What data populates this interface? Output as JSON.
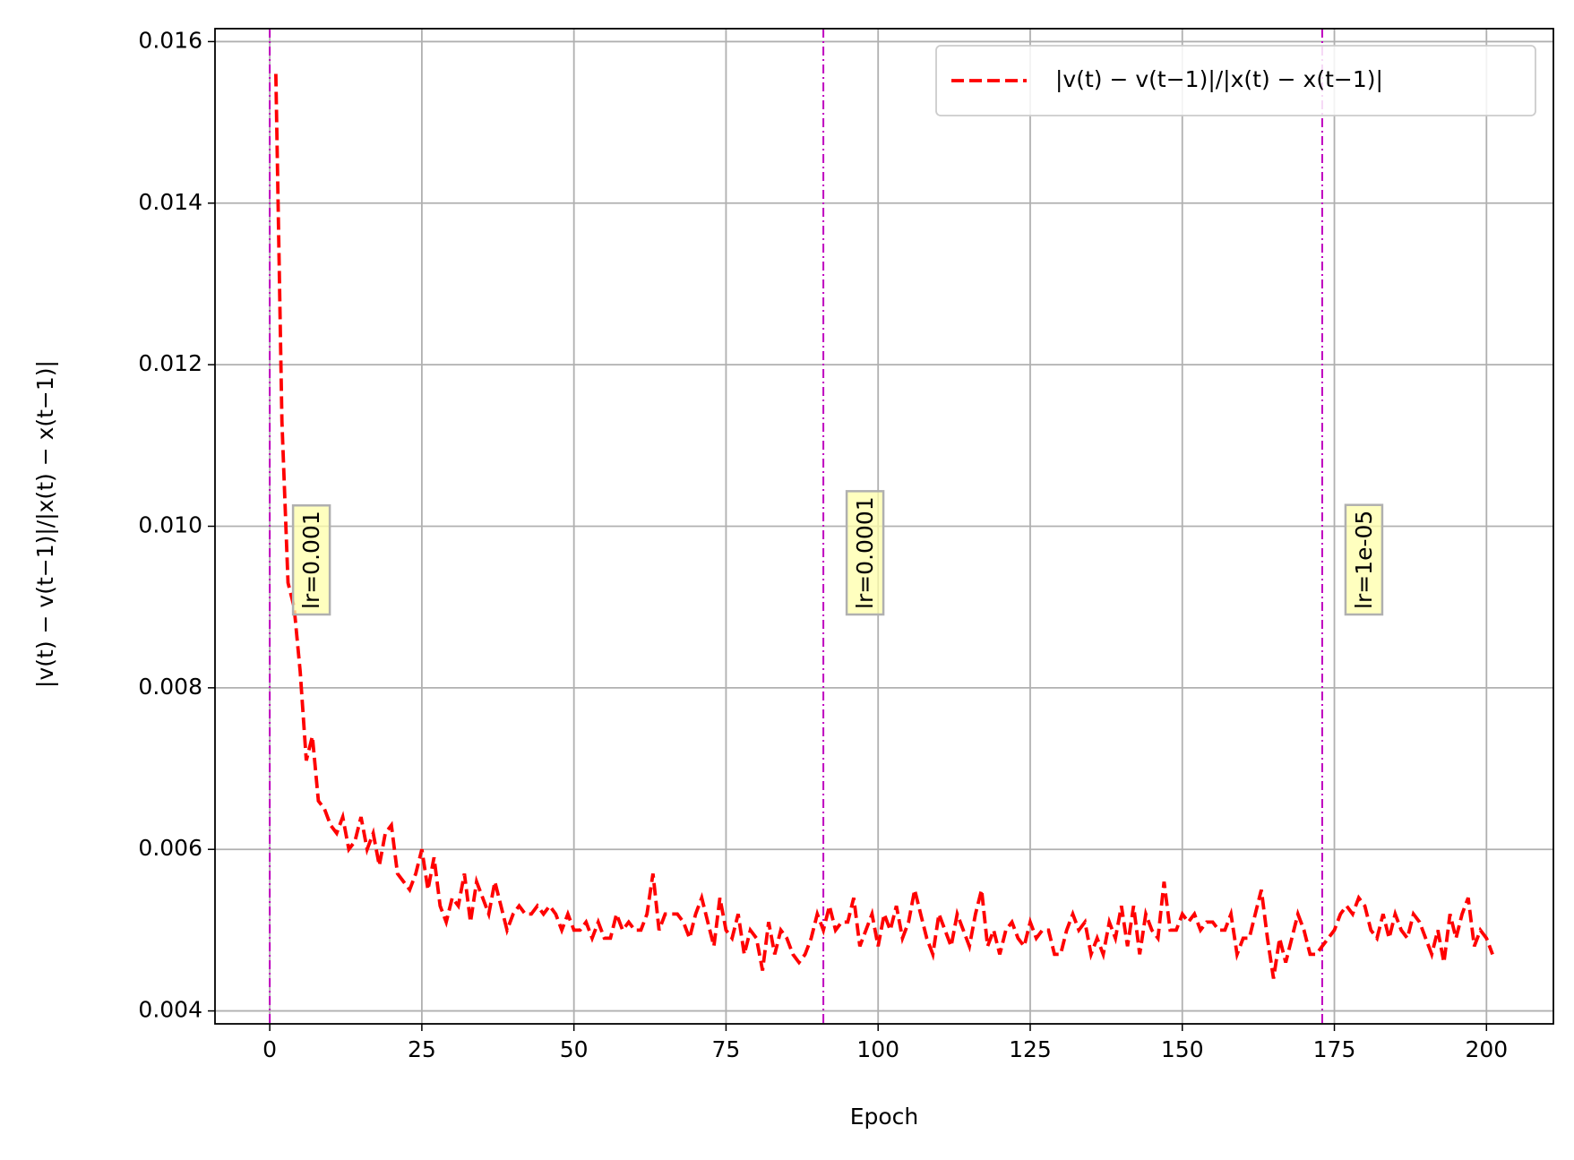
{
  "chart_data": {
    "type": "line",
    "x_label": "Epoch",
    "y_label": "|v(t) − v(t−1)|/|x(t) − x(t−1)|",
    "xlim": [
      -9,
      211
    ],
    "ylim": [
      0.00384,
      0.01616
    ],
    "xticks": [
      0,
      25,
      50,
      75,
      100,
      125,
      150,
      175,
      200
    ],
    "yticks": [
      0.004,
      0.006,
      0.008,
      {
        "value": 0.01,
        "label": "0.010"
      },
      0.012,
      0.014,
      0.016
    ],
    "grid": true,
    "legend": "upper right",
    "vlines": [
      {
        "x": 0,
        "label": "lr=0.001"
      },
      {
        "x": 91,
        "label": "lr=0.0001"
      },
      {
        "x": 173,
        "label": "lr=1e-05"
      }
    ],
    "vline_color": "#bf00bf",
    "series": [
      {
        "name": "|v(t) − v(t−1)|/|x(t) − x(t−1)|",
        "color": "#ff0000",
        "x": [
          1,
          2,
          3,
          4,
          5,
          6,
          7,
          8,
          9,
          10,
          11,
          12,
          13,
          14,
          15,
          16,
          17,
          18,
          19,
          20,
          21,
          22,
          23,
          24,
          25,
          26,
          27,
          28,
          29,
          30,
          31,
          32,
          33,
          34,
          35,
          36,
          37,
          38,
          39,
          40,
          41,
          42,
          43,
          44,
          45,
          46,
          47,
          48,
          49,
          50,
          51,
          52,
          53,
          54,
          55,
          56,
          57,
          58,
          59,
          60,
          61,
          62,
          63,
          64,
          65,
          66,
          67,
          68,
          69,
          70,
          71,
          72,
          73,
          74,
          75,
          76,
          77,
          78,
          79,
          80,
          81,
          82,
          83,
          84,
          85,
          86,
          87,
          88,
          89,
          90,
          91,
          92,
          93,
          94,
          95,
          96,
          97,
          98,
          99,
          100,
          101,
          102,
          103,
          104,
          105,
          106,
          107,
          108,
          109,
          110,
          111,
          112,
          113,
          114,
          115,
          116,
          117,
          118,
          119,
          120,
          121,
          122,
          123,
          124,
          125,
          126,
          127,
          128,
          129,
          130,
          131,
          132,
          133,
          134,
          135,
          136,
          137,
          138,
          139,
          140,
          141,
          142,
          143,
          144,
          145,
          146,
          147,
          148,
          149,
          150,
          151,
          152,
          153,
          154,
          155,
          156,
          157,
          158,
          159,
          160,
          161,
          162,
          163,
          164,
          165,
          166,
          167,
          168,
          169,
          170,
          171,
          172,
          173,
          174,
          175,
          176,
          177,
          178,
          179,
          180,
          181,
          182,
          183,
          184,
          185,
          186,
          187,
          188,
          189,
          190,
          191,
          192,
          193,
          194,
          195,
          196,
          197,
          198,
          199,
          200,
          201
        ],
        "values": [
          0.0156,
          0.0113,
          0.0093,
          0.009,
          0.0082,
          0.0071,
          0.0074,
          0.0066,
          0.0065,
          0.0063,
          0.0062,
          0.0064,
          0.006,
          0.0061,
          0.0064,
          0.006,
          0.0062,
          0.0058,
          0.0062,
          0.0063,
          0.0057,
          0.0056,
          0.0055,
          0.0057,
          0.006,
          0.0055,
          0.0059,
          0.0053,
          0.0051,
          0.0054,
          0.0053,
          0.0057,
          0.0051,
          0.0056,
          0.0054,
          0.0052,
          0.0056,
          0.0053,
          0.005,
          0.0052,
          0.0053,
          0.0052,
          0.0052,
          0.0053,
          0.0052,
          0.0053,
          0.0052,
          0.005,
          0.0052,
          0.005,
          0.005,
          0.0051,
          0.0049,
          0.0051,
          0.0049,
          0.0049,
          0.0052,
          0.005,
          0.0051,
          0.005,
          0.005,
          0.0052,
          0.0057,
          0.005,
          0.0052,
          0.0052,
          0.0052,
          0.0051,
          0.0049,
          0.0052,
          0.0054,
          0.0051,
          0.0048,
          0.0054,
          0.005,
          0.0049,
          0.0052,
          0.0047,
          0.005,
          0.0049,
          0.0045,
          0.0051,
          0.0047,
          0.005,
          0.0049,
          0.0047,
          0.0046,
          0.0047,
          0.0049,
          0.0052,
          0.005,
          0.0053,
          0.005,
          0.0051,
          0.0051,
          0.0054,
          0.0048,
          0.005,
          0.0052,
          0.0048,
          0.0052,
          0.005,
          0.0053,
          0.0049,
          0.0051,
          0.0055,
          0.0052,
          0.0049,
          0.0047,
          0.0052,
          0.005,
          0.0048,
          0.0052,
          0.005,
          0.0048,
          0.0052,
          0.0055,
          0.0048,
          0.005,
          0.0047,
          0.005,
          0.0051,
          0.0049,
          0.0048,
          0.0051,
          0.0049,
          0.005,
          0.005,
          0.0047,
          0.0047,
          0.005,
          0.0052,
          0.005,
          0.0051,
          0.0047,
          0.0049,
          0.0047,
          0.0051,
          0.0049,
          0.0053,
          0.0048,
          0.0053,
          0.0047,
          0.0052,
          0.005,
          0.0049,
          0.0056,
          0.005,
          0.005,
          0.0052,
          0.0051,
          0.0052,
          0.005,
          0.0051,
          0.0051,
          0.005,
          0.005,
          0.0052,
          0.0047,
          0.0049,
          0.0049,
          0.0052,
          0.0055,
          0.0049,
          0.0044,
          0.0049,
          0.0046,
          0.0049,
          0.0052,
          0.005,
          0.0047,
          0.0047,
          0.0048,
          0.0049,
          0.005,
          0.0052,
          0.0053,
          0.0052,
          0.0054,
          0.0053,
          0.005,
          0.0049,
          0.0052,
          0.0049,
          0.0052,
          0.005,
          0.0049,
          0.0052,
          0.0051,
          0.0049,
          0.0047,
          0.005,
          0.0046,
          0.0052,
          0.0049,
          0.0052,
          0.0054,
          0.0048,
          0.005,
          0.0049,
          0.0047
        ]
      }
    ]
  }
}
